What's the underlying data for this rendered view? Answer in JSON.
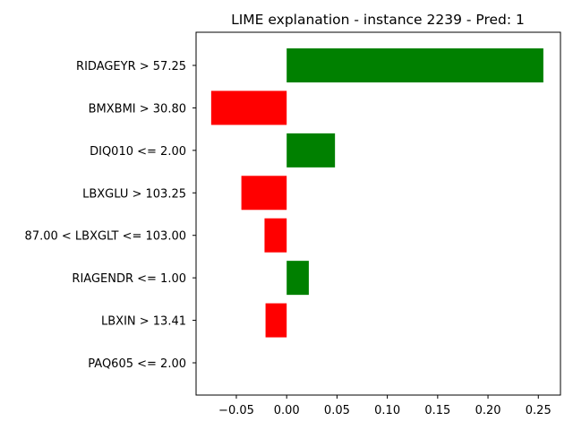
{
  "chart_data": {
    "type": "bar",
    "orientation": "horizontal",
    "title": "LIME explanation - instance 2239 - Pred: 1",
    "xlabel": "",
    "ylabel": "",
    "xlim": [
      -0.09,
      0.272
    ],
    "grid": false,
    "categories": [
      "RIDAGEYR > 57.25",
      "BMXBMI > 30.80",
      "DIQ010 <= 2.00",
      "LBXGLU > 103.25",
      "87.00 < LBXGLT <= 103.00",
      "RIAGENDR <= 1.00",
      "LBXIN > 13.41",
      "PAQ605 <= 2.00"
    ],
    "values": [
      0.255,
      -0.075,
      0.048,
      -0.045,
      -0.022,
      0.022,
      -0.021,
      0.0
    ],
    "x_ticks": [
      -0.05,
      0.0,
      0.05,
      0.1,
      0.15,
      0.2,
      0.25
    ],
    "x_tick_labels": [
      "−0.05",
      "0.00",
      "0.05",
      "0.10",
      "0.15",
      "0.20",
      "0.25"
    ],
    "colors": {
      "positive": "#008000",
      "negative": "#ff0000",
      "axis": "#000000"
    }
  }
}
